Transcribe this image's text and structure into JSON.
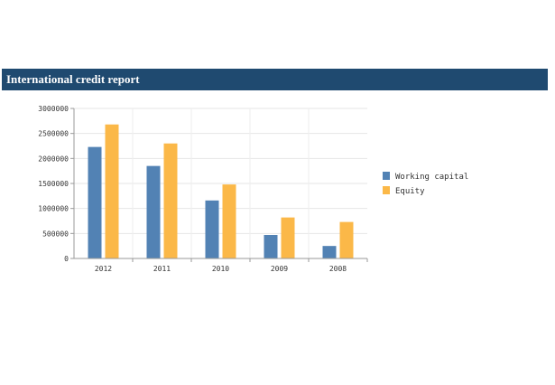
{
  "header": {
    "title": "International credit  report"
  },
  "colors": {
    "header_bg": "#1f4a70",
    "working_capital": "#5282b4",
    "equity": "#fbb848"
  },
  "chart_data": {
    "type": "bar",
    "categories": [
      "2012",
      "2011",
      "2010",
      "2009",
      "2008"
    ],
    "series": [
      {
        "name": "Working capital",
        "values": [
          2230000,
          1850000,
          1160000,
          470000,
          250000
        ],
        "color": "#5282b4"
      },
      {
        "name": "Equity",
        "values": [
          2680000,
          2300000,
          1480000,
          820000,
          730000
        ],
        "color": "#fbb848"
      }
    ],
    "yticks": [
      "0",
      "500000",
      "1000000",
      "1500000",
      "2000000",
      "2500000",
      "3000000"
    ],
    "ylim": [
      0,
      3000000
    ],
    "title": "",
    "xlabel": "",
    "ylabel": "",
    "grid": true,
    "legend_position": "right"
  }
}
